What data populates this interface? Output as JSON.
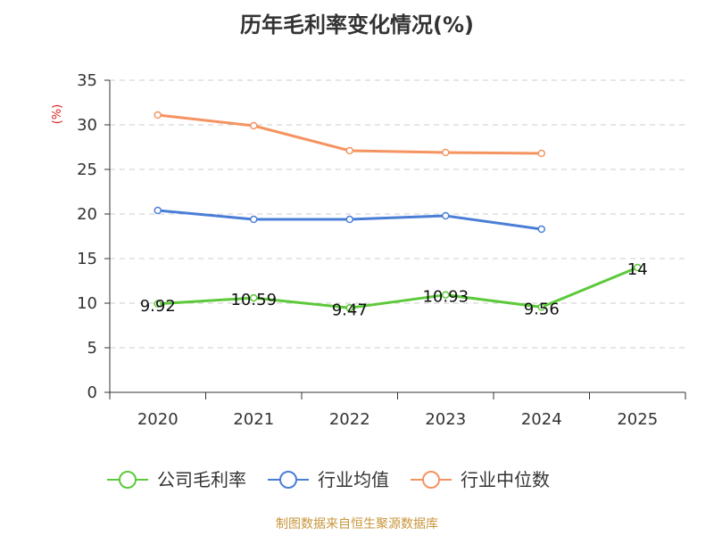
{
  "chart_data": {
    "type": "line",
    "title": "历年毛利率变化情况(%)",
    "unit_label": "(%)",
    "categories": [
      "2020",
      "2021",
      "2022",
      "2023",
      "2024",
      "2025"
    ],
    "yticks": [
      "0",
      "5",
      "10",
      "15",
      "20",
      "25",
      "30",
      "35"
    ],
    "ylim": [
      0,
      35
    ],
    "grid": true,
    "legend_position": "bottom",
    "series": [
      {
        "name": "公司毛利率",
        "color": "#5cc93a",
        "values": [
          9.92,
          10.59,
          9.47,
          10.93,
          9.56,
          14
        ],
        "labels": [
          "9.92",
          "10.59",
          "9.47",
          "10.93",
          "9.56",
          "14"
        ]
      },
      {
        "name": "行业均值",
        "color": "#4a7ed6",
        "values": [
          20.4,
          19.4,
          19.4,
          19.8,
          18.3,
          null
        ]
      },
      {
        "name": "行业中位数",
        "color": "#f59361",
        "values": [
          31.1,
          29.9,
          27.1,
          26.9,
          26.8,
          null
        ]
      }
    ],
    "source": "制图数据来自恒生聚源数据库"
  }
}
